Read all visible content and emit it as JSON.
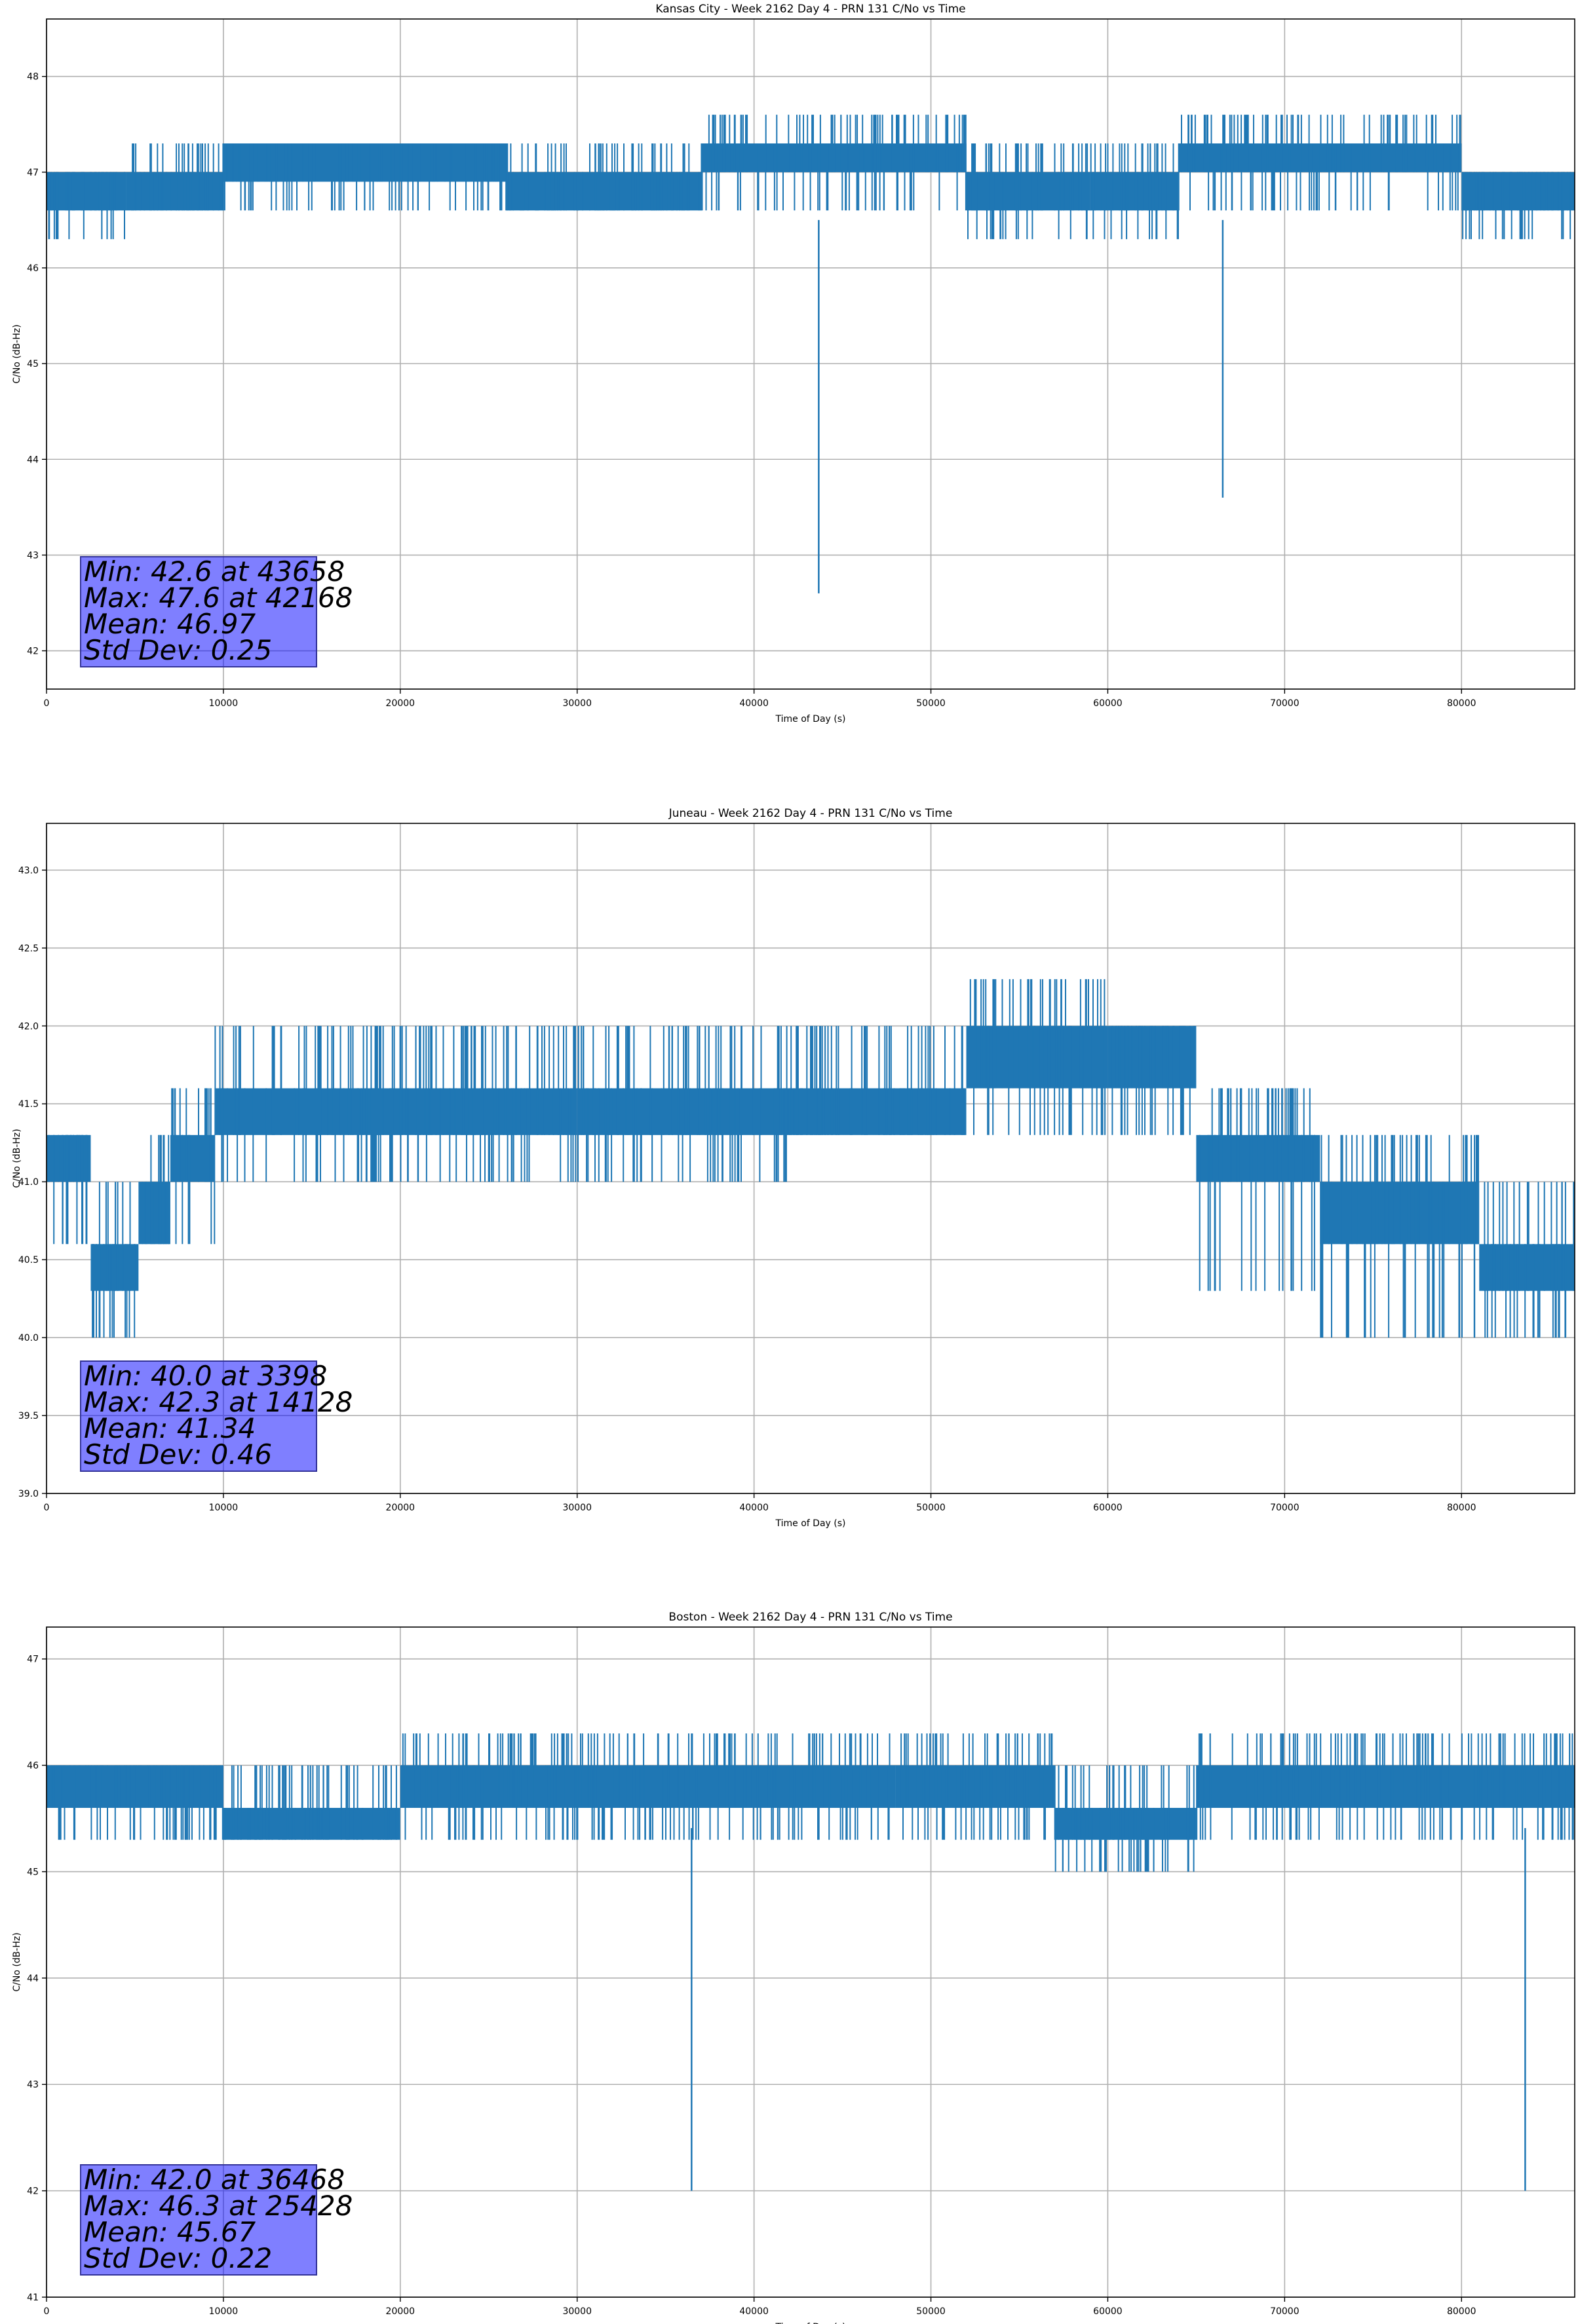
{
  "figure": {
    "background": "#ffffff",
    "line_color": "#1f77b4",
    "grid_color": "#b0b0b0",
    "stats_box_color": "#8080ff"
  },
  "chart_data": [
    {
      "type": "line",
      "title": "Kansas City - Week 2162 Day 4 - PRN 131 C/No vs Time",
      "xlabel": "Time of Day (s)",
      "ylabel": "C/No (dB-Hz)",
      "xlim": [
        0,
        86400
      ],
      "ylim": [
        41.6,
        48.6
      ],
      "xticks": [
        0,
        10000,
        20000,
        30000,
        40000,
        50000,
        60000,
        70000,
        80000
      ],
      "yticks": [
        42,
        43,
        44,
        45,
        46,
        47,
        48
      ],
      "grid": true,
      "series": [
        {
          "bands": [
            {
              "x0": 0,
              "x1": 4500,
              "lo": 46.3,
              "hi": 47.0,
              "core_lo": 46.6,
              "core_hi": 47.0
            },
            {
              "x0": 4500,
              "x1": 10000,
              "lo": 46.6,
              "hi": 47.3,
              "core_lo": 46.6,
              "core_hi": 47.0
            },
            {
              "x0": 10000,
              "x1": 26000,
              "lo": 46.6,
              "hi": 47.3,
              "core_lo": 46.9,
              "core_hi": 47.3
            },
            {
              "x0": 26000,
              "x1": 37000,
              "lo": 46.6,
              "hi": 47.3,
              "core_lo": 46.6,
              "core_hi": 47.0
            },
            {
              "x0": 37000,
              "x1": 52000,
              "lo": 46.6,
              "hi": 47.6,
              "core_lo": 47.0,
              "core_hi": 47.3
            },
            {
              "x0": 52000,
              "x1": 59000,
              "lo": 46.3,
              "hi": 47.3,
              "core_lo": 46.6,
              "core_hi": 47.0
            },
            {
              "x0": 59000,
              "x1": 64000,
              "lo": 46.3,
              "hi": 47.3,
              "core_lo": 46.6,
              "core_hi": 47.0
            },
            {
              "x0": 64000,
              "x1": 80000,
              "lo": 46.6,
              "hi": 47.6,
              "core_lo": 47.0,
              "core_hi": 47.3
            },
            {
              "x0": 80000,
              "x1": 86400,
              "lo": 46.3,
              "hi": 47.0,
              "core_lo": 46.6,
              "core_hi": 47.0
            }
          ],
          "spikes": [
            {
              "x": 43658,
              "y": 42.6
            },
            {
              "x": 66500,
              "y": 43.6
            }
          ]
        }
      ],
      "annotation": [
        "Min: 42.6 at 43658",
        "Max: 47.6 at 42168",
        "Mean: 46.97",
        "Std Dev: 0.25"
      ]
    },
    {
      "type": "line",
      "title": "Juneau - Week 2162 Day 4 - PRN 131 C/No vs Time",
      "xlabel": "Time of Day (s)",
      "ylabel": "C/No (dB-Hz)",
      "xlim": [
        0,
        86400
      ],
      "ylim": [
        39.0,
        43.3
      ],
      "xticks": [
        0,
        10000,
        20000,
        30000,
        40000,
        50000,
        60000,
        70000,
        80000
      ],
      "yticks": [
        39.0,
        39.5,
        40.0,
        40.5,
        41.0,
        41.5,
        42.0,
        42.5,
        43.0
      ],
      "grid": true,
      "series": [
        {
          "bands": [
            {
              "x0": 0,
              "x1": 2500,
              "lo": 40.6,
              "hi": 41.3,
              "core_lo": 41.0,
              "core_hi": 41.3
            },
            {
              "x0": 2500,
              "x1": 5200,
              "lo": 40.0,
              "hi": 41.0,
              "core_lo": 40.3,
              "core_hi": 40.6
            },
            {
              "x0": 5200,
              "x1": 7000,
              "lo": 40.6,
              "hi": 41.3,
              "core_lo": 40.6,
              "core_hi": 41.0
            },
            {
              "x0": 7000,
              "x1": 9500,
              "lo": 40.6,
              "hi": 41.6,
              "core_lo": 41.0,
              "core_hi": 41.3
            },
            {
              "x0": 9500,
              "x1": 30000,
              "lo": 41.0,
              "hi": 42.0,
              "core_lo": 41.3,
              "core_hi": 41.6
            },
            {
              "x0": 30000,
              "x1": 42000,
              "lo": 41.0,
              "hi": 42.0,
              "core_lo": 41.3,
              "core_hi": 41.6
            },
            {
              "x0": 42000,
              "x1": 52000,
              "lo": 41.3,
              "hi": 42.0,
              "core_lo": 41.3,
              "core_hi": 41.6
            },
            {
              "x0": 52000,
              "x1": 60000,
              "lo": 41.3,
              "hi": 42.3,
              "core_lo": 41.6,
              "core_hi": 42.0
            },
            {
              "x0": 60000,
              "x1": 65000,
              "lo": 41.3,
              "hi": 42.0,
              "core_lo": 41.6,
              "core_hi": 42.0
            },
            {
              "x0": 65000,
              "x1": 72000,
              "lo": 40.3,
              "hi": 41.6,
              "core_lo": 41.0,
              "core_hi": 41.3
            },
            {
              "x0": 72000,
              "x1": 81000,
              "lo": 40.0,
              "hi": 41.3,
              "core_lo": 40.6,
              "core_hi": 41.0
            },
            {
              "x0": 81000,
              "x1": 86400,
              "lo": 40.0,
              "hi": 41.0,
              "core_lo": 40.3,
              "core_hi": 40.6
            }
          ],
          "spikes": []
        }
      ],
      "annotation": [
        "Min: 40.0 at 3398",
        "Max: 42.3 at 14128",
        "Mean: 41.34",
        "Std Dev: 0.46"
      ]
    },
    {
      "type": "line",
      "title": "Boston - Week 2162 Day 4 - PRN 131 C/No vs Time",
      "xlabel": "Time of Day (s)",
      "ylabel": "C/No (dB-Hz)",
      "xlim": [
        0,
        86400
      ],
      "ylim": [
        41.0,
        47.3
      ],
      "xticks": [
        0,
        10000,
        20000,
        30000,
        40000,
        50000,
        60000,
        70000,
        80000
      ],
      "yticks": [
        41,
        42,
        43,
        44,
        45,
        46,
        47
      ],
      "grid": true,
      "series": [
        {
          "bands": [
            {
              "x0": 0,
              "x1": 10000,
              "lo": 45.3,
              "hi": 46.0,
              "core_lo": 45.6,
              "core_hi": 46.0
            },
            {
              "x0": 10000,
              "x1": 20000,
              "lo": 45.3,
              "hi": 46.0,
              "core_lo": 45.3,
              "core_hi": 45.6
            },
            {
              "x0": 20000,
              "x1": 48000,
              "lo": 45.3,
              "hi": 46.3,
              "core_lo": 45.6,
              "core_hi": 46.0
            },
            {
              "x0": 48000,
              "x1": 57000,
              "lo": 45.3,
              "hi": 46.3,
              "core_lo": 45.6,
              "core_hi": 46.0
            },
            {
              "x0": 57000,
              "x1": 65000,
              "lo": 45.0,
              "hi": 46.0,
              "core_lo": 45.3,
              "core_hi": 45.6
            },
            {
              "x0": 65000,
              "x1": 86400,
              "lo": 45.3,
              "hi": 46.3,
              "core_lo": 45.6,
              "core_hi": 46.0
            }
          ],
          "spikes": [
            {
              "x": 36468,
              "y": 42.0
            },
            {
              "x": 83600,
              "y": 42.0
            }
          ]
        }
      ],
      "annotation": [
        "Min: 42.0 at 36468",
        "Max: 46.3 at 25428",
        "Mean: 45.67",
        "Std Dev: 0.22"
      ]
    }
  ]
}
